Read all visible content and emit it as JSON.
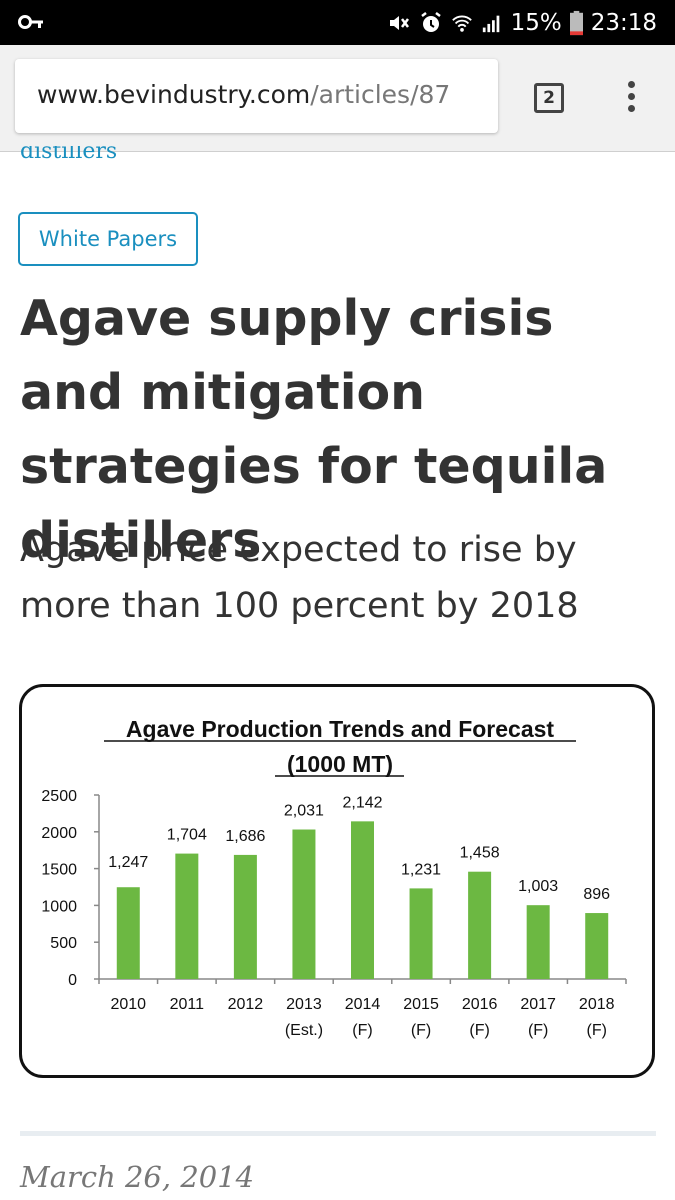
{
  "status_bar": {
    "battery": "15%",
    "time": "23:18",
    "icons": [
      "key-icon",
      "mute-icon",
      "alarm-icon",
      "wifi-icon",
      "signal-icon",
      "battery-icon"
    ]
  },
  "browser": {
    "url_domain": "www.bevindustry.com",
    "url_path": "/articles/87",
    "tab_count": "2",
    "icons": [
      "tabs-icon",
      "more-vert-icon"
    ]
  },
  "article": {
    "breadcrumb_partial": "distillers",
    "tag": "White Papers",
    "title": "Agave supply crisis and mitigation strategies for tequila distillers",
    "subtitle": "Agave price expected to rise by more than 100 percent by 2018",
    "date": "March 26, 2014"
  },
  "chart_data": {
    "type": "bar",
    "title": "Agave Production Trends and Forecast",
    "subtitle": "(1000 MT)",
    "categories": [
      "2010",
      "2011",
      "2012",
      "2013",
      "2014",
      "2015",
      "2016",
      "2017",
      "2018"
    ],
    "category_sublabels": [
      "",
      "",
      "",
      "(Est.)",
      "(F)",
      "(F)",
      "(F)",
      "(F)",
      "(F)"
    ],
    "values": [
      1247,
      1704,
      1686,
      2031,
      2142,
      1231,
      1458,
      1003,
      896
    ],
    "data_labels": [
      "1,247",
      "1,704",
      "1,686",
      "2,031",
      "2,142",
      "1,231",
      "1,458",
      "1,003",
      "896"
    ],
    "ylim": [
      0,
      2500
    ],
    "yticks": [
      "0",
      "500",
      "1000",
      "1500",
      "2000",
      "2500"
    ],
    "ytick_values": [
      0,
      500,
      1000,
      1500,
      2000,
      2500
    ],
    "bar_color": "#6cb842",
    "grid": false,
    "legend": "none"
  },
  "colors": {
    "accent": "#1a8fbf",
    "text": "#333333",
    "status_bar_bg": "#000000",
    "battery_low": "#e53935"
  }
}
